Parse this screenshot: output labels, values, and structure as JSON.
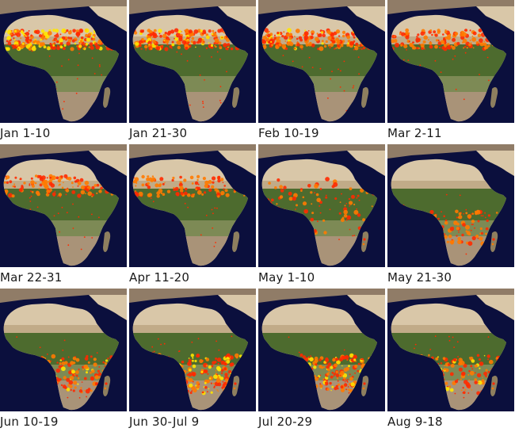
{
  "panels": [
    {
      "label": "Jan 1-10",
      "fires": "north-heavy",
      "intensity": 1.0
    },
    {
      "label": "Jan 21-30",
      "fires": "north-heavy",
      "intensity": 0.85
    },
    {
      "label": "Feb 10-19",
      "fires": "north-heavy",
      "intensity": 0.8
    },
    {
      "label": "Mar 2-11",
      "fires": "north-heavy",
      "intensity": 0.65
    },
    {
      "label": "Mar 22-31",
      "fires": "north-mid",
      "intensity": 0.6
    },
    {
      "label": "Apr 11-20",
      "fires": "north-mid",
      "intensity": 0.5
    },
    {
      "label": "May 1-10",
      "fires": "transition",
      "intensity": 0.5
    },
    {
      "label": "May 21-30",
      "fires": "south-mid",
      "intensity": 0.6
    },
    {
      "label": "Jun 10-19",
      "fires": "south-heavy",
      "intensity": 0.85
    },
    {
      "label": "Jun 30-Jul 9",
      "fires": "south-heavy",
      "intensity": 1.0
    },
    {
      "label": "Jul 20-29",
      "fires": "south-heavy",
      "intensity": 0.95
    },
    {
      "label": "Aug 9-18",
      "fires": "south-heavy",
      "intensity": 0.8
    }
  ],
  "colors": {
    "ocean": "#0b0f3d",
    "desert": "#d9c7a8",
    "sahel": "#b7a07a",
    "forest": "#4d6b2e",
    "savanna": "#7d8a55",
    "fire_red": "#ff2a00",
    "fire_orange": "#ff7a00",
    "fire_yellow": "#ffe600"
  }
}
